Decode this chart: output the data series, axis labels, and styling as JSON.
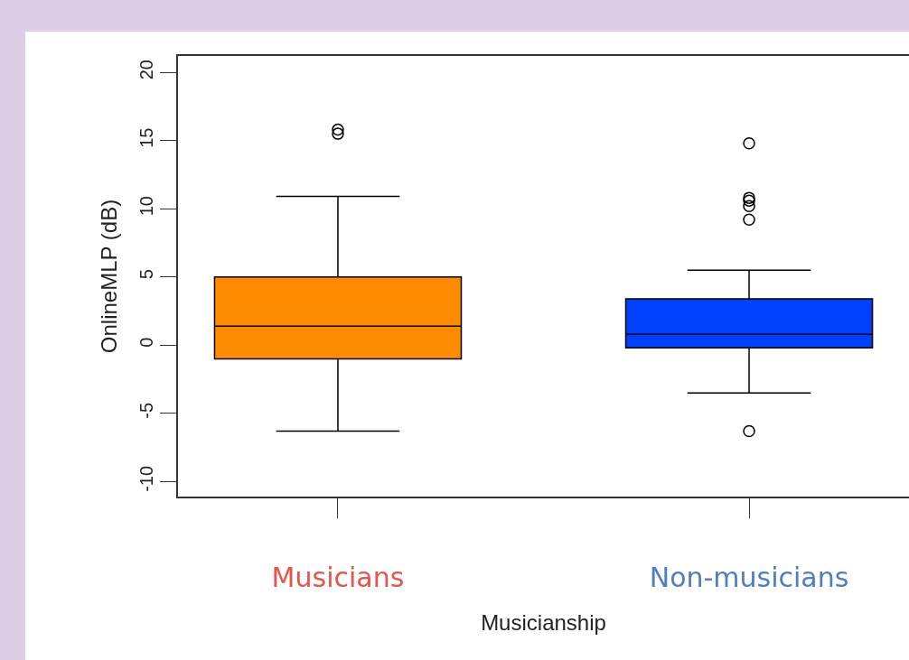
{
  "chart_data": {
    "type": "box",
    "xlabel": "Musicianship",
    "ylabel": "OnlineMLP (dB)",
    "categories": [
      "Musicians",
      "Non-musicians"
    ],
    "colors": [
      "#ff8c00",
      "#0040ff"
    ],
    "boxes": [
      {
        "low": -6.3,
        "q1": -1.0,
        "median": 1.4,
        "q3": 5.0,
        "high": 10.9,
        "outliers": [
          15.8,
          15.5
        ]
      },
      {
        "low": -3.5,
        "q1": -0.2,
        "median": 0.8,
        "q3": 3.4,
        "high": 5.5,
        "outliers": [
          14.8,
          10.8,
          10.6,
          10.2,
          9.2,
          -6.3
        ]
      }
    ],
    "ylim": [
      -11.1,
      21.2
    ],
    "yticks": [
      -10,
      -5,
      0,
      5,
      10,
      15,
      20
    ],
    "grid": false
  }
}
